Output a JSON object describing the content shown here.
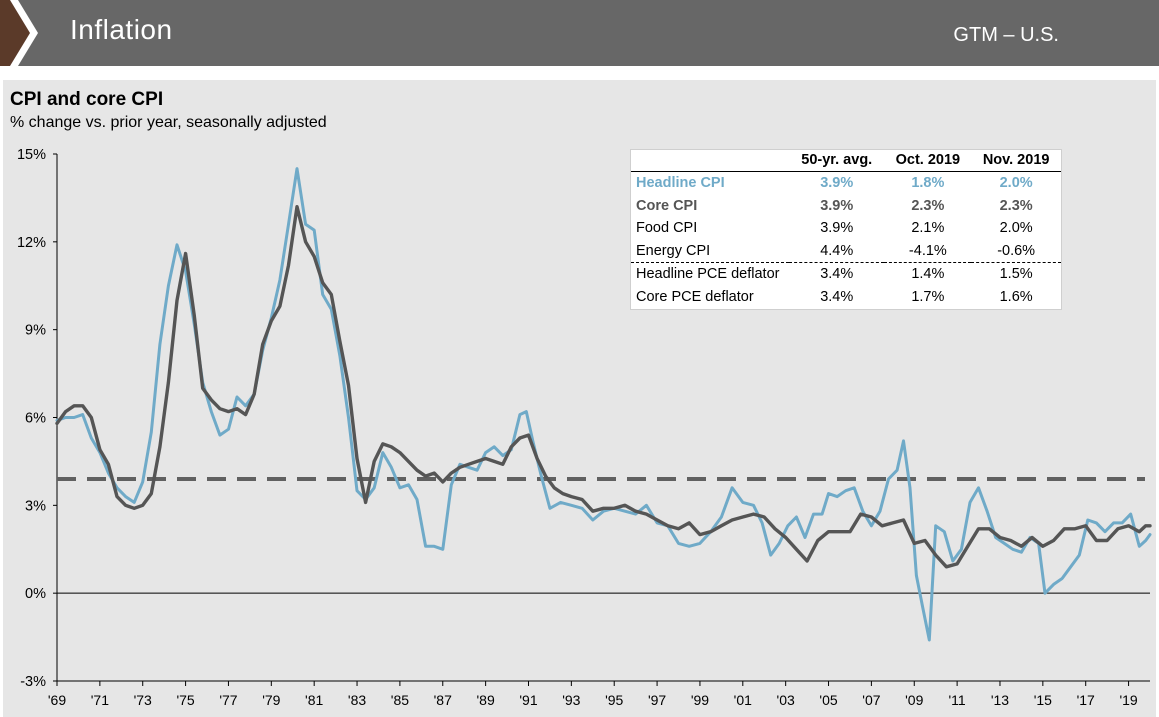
{
  "header": {
    "title": "Inflation",
    "section": "GTM – U.S."
  },
  "colors": {
    "header_bg": "#676767",
    "arrow": "#5b3a29",
    "panel_bg": "#e6e6e6",
    "headline_cpi": "#6faac8",
    "core_cpi": "#555555",
    "avg_line": "#606060"
  },
  "stats_table": {
    "columns": [
      "",
      "50-yr. avg.",
      "Oct. 2019",
      "Nov. 2019"
    ],
    "rows": [
      {
        "label": "Headline CPI",
        "avg": "3.9%",
        "oct": "1.8%",
        "nov": "2.0%"
      },
      {
        "label": "Core CPI",
        "avg": "3.9%",
        "oct": "2.3%",
        "nov": "2.3%"
      },
      {
        "label": "Food CPI",
        "avg": "3.9%",
        "oct": "2.1%",
        "nov": "2.0%"
      },
      {
        "label": "Energy CPI",
        "avg": "4.4%",
        "oct": "-4.1%",
        "nov": "-0.6%"
      },
      {
        "label": "Headline PCE deflator",
        "avg": "3.4%",
        "oct": "1.4%",
        "nov": "1.5%"
      },
      {
        "label": "Core PCE deflator",
        "avg": "3.4%",
        "oct": "1.7%",
        "nov": "1.6%"
      }
    ]
  },
  "chart_data": {
    "type": "line",
    "title": "CPI and core CPI",
    "subtitle": "% change vs. prior year, seasonally adjusted",
    "ylim": [
      -3,
      15
    ],
    "xlim": [
      1969,
      2020
    ],
    "yticks": [
      -3,
      0,
      3,
      6,
      9,
      12,
      15
    ],
    "ytick_labels": [
      "-3%",
      "0%",
      "3%",
      "6%",
      "9%",
      "12%",
      "15%"
    ],
    "xticks": [
      1969,
      1971,
      1973,
      1975,
      1977,
      1979,
      1981,
      1983,
      1985,
      1987,
      1989,
      1991,
      1993,
      1995,
      1997,
      1999,
      2001,
      2003,
      2005,
      2007,
      2009,
      2011,
      2013,
      2015,
      2017,
      2019
    ],
    "xtick_labels": [
      "'69",
      "'71",
      "'73",
      "'75",
      "'77",
      "'79",
      "'81",
      "'83",
      "'85",
      "'87",
      "'89",
      "'91",
      "'93",
      "'95",
      "'97",
      "'99",
      "'01",
      "'03",
      "'05",
      "'07",
      "'09",
      "'11",
      "'13",
      "'15",
      "'17",
      "'19"
    ],
    "reference_line": {
      "value": 3.9,
      "style": "dashed"
    },
    "grid": false,
    "series": [
      {
        "id": "headline",
        "x": [
          1969.0,
          1969.4,
          1969.8,
          1970.2,
          1970.6,
          1971.0,
          1971.4,
          1971.8,
          1972.2,
          1972.6,
          1973.0,
          1973.4,
          1973.8,
          1974.2,
          1974.6,
          1975.0,
          1975.4,
          1975.8,
          1976.2,
          1976.6,
          1977.0,
          1977.4,
          1977.8,
          1978.2,
          1978.6,
          1979.0,
          1979.4,
          1979.8,
          1980.2,
          1980.6,
          1981.0,
          1981.4,
          1981.8,
          1982.2,
          1982.6,
          1983.0,
          1983.4,
          1983.8,
          1984.2,
          1984.6,
          1985.0,
          1985.4,
          1985.8,
          1986.2,
          1986.6,
          1987.0,
          1987.4,
          1987.8,
          1988.2,
          1988.6,
          1989.0,
          1989.4,
          1989.8,
          1990.2,
          1990.6,
          1990.9,
          1991.2,
          1991.6,
          1992.0,
          1992.5,
          1993.0,
          1993.5,
          1994.0,
          1994.5,
          1995.0,
          1995.5,
          1996.0,
          1996.5,
          1997.0,
          1997.5,
          1998.0,
          1998.5,
          1999.0,
          1999.5,
          2000.0,
          2000.5,
          2001.0,
          2001.5,
          2001.9,
          2002.3,
          2002.7,
          2003.1,
          2003.5,
          2003.9,
          2004.3,
          2004.7,
          2005.0,
          2005.4,
          2005.8,
          2006.2,
          2006.6,
          2007.0,
          2007.4,
          2007.8,
          2008.2,
          2008.5,
          2008.8,
          2009.1,
          2009.4,
          2009.7,
          2010.0,
          2010.4,
          2010.8,
          2011.2,
          2011.6,
          2012.0,
          2012.4,
          2012.8,
          2013.2,
          2013.6,
          2014.0,
          2014.4,
          2014.8,
          2015.1,
          2015.5,
          2015.9,
          2016.3,
          2016.7,
          2017.1,
          2017.5,
          2017.9,
          2018.3,
          2018.7,
          2019.1,
          2019.5,
          2019.8,
          2020.0
        ],
        "values": [
          5.9,
          6.0,
          6.0,
          6.1,
          5.3,
          4.8,
          4.1,
          3.6,
          3.3,
          3.1,
          3.8,
          5.5,
          8.5,
          10.5,
          11.9,
          11.0,
          9.2,
          7.2,
          6.2,
          5.4,
          5.6,
          6.7,
          6.4,
          6.8,
          8.3,
          9.4,
          10.7,
          12.6,
          14.5,
          12.6,
          12.4,
          10.2,
          9.7,
          8.1,
          6.0,
          3.5,
          3.2,
          3.6,
          4.8,
          4.3,
          3.6,
          3.7,
          3.2,
          1.6,
          1.6,
          1.5,
          3.7,
          4.4,
          4.3,
          4.2,
          4.8,
          5.0,
          4.7,
          4.9,
          6.1,
          6.2,
          5.2,
          4.0,
          2.9,
          3.1,
          3.0,
          2.9,
          2.5,
          2.8,
          2.9,
          2.8,
          2.7,
          3.0,
          2.4,
          2.3,
          1.7,
          1.6,
          1.7,
          2.1,
          2.6,
          3.6,
          3.1,
          3.0,
          2.4,
          1.3,
          1.7,
          2.3,
          2.6,
          1.9,
          2.7,
          2.7,
          3.4,
          3.3,
          3.5,
          3.6,
          2.8,
          2.3,
          2.8,
          3.9,
          4.2,
          5.2,
          3.6,
          0.6,
          -0.5,
          -1.6,
          2.3,
          2.1,
          1.1,
          1.5,
          3.1,
          3.6,
          2.8,
          1.9,
          1.7,
          1.5,
          1.4,
          1.9,
          1.7,
          0.0,
          0.3,
          0.5,
          0.9,
          1.3,
          2.5,
          2.4,
          2.1,
          2.4,
          2.4,
          2.7,
          1.6,
          1.8,
          2.0
        ]
      },
      {
        "id": "core",
        "x": [
          1969.0,
          1969.4,
          1969.8,
          1970.2,
          1970.6,
          1971.0,
          1971.4,
          1971.8,
          1972.2,
          1972.6,
          1973.0,
          1973.4,
          1973.8,
          1974.2,
          1974.6,
          1975.0,
          1975.4,
          1975.8,
          1976.2,
          1976.6,
          1977.0,
          1977.4,
          1977.8,
          1978.2,
          1978.6,
          1979.0,
          1979.4,
          1979.8,
          1980.2,
          1980.6,
          1981.0,
          1981.4,
          1981.8,
          1982.2,
          1982.6,
          1983.0,
          1983.4,
          1983.8,
          1984.2,
          1984.6,
          1985.0,
          1985.4,
          1985.8,
          1986.2,
          1986.6,
          1987.0,
          1987.4,
          1987.8,
          1988.2,
          1988.6,
          1989.0,
          1989.4,
          1989.8,
          1990.2,
          1990.6,
          1991.0,
          1991.4,
          1991.8,
          1992.2,
          1992.6,
          1993.0,
          1993.5,
          1994.0,
          1994.5,
          1995.0,
          1995.5,
          1996.0,
          1996.5,
          1997.0,
          1997.5,
          1998.0,
          1998.5,
          1999.0,
          1999.5,
          2000.0,
          2000.5,
          2001.0,
          2001.5,
          2002.0,
          2002.5,
          2003.0,
          2003.5,
          2004.0,
          2004.5,
          2005.0,
          2005.5,
          2006.0,
          2006.5,
          2007.0,
          2007.5,
          2008.0,
          2008.5,
          2009.0,
          2009.5,
          2010.0,
          2010.5,
          2011.0,
          2011.5,
          2012.0,
          2012.5,
          2013.0,
          2013.5,
          2014.0,
          2014.5,
          2015.0,
          2015.5,
          2016.0,
          2016.5,
          2017.0,
          2017.5,
          2018.0,
          2018.5,
          2019.0,
          2019.5,
          2019.8,
          2020.0
        ],
        "values": [
          5.8,
          6.2,
          6.4,
          6.4,
          6.0,
          4.9,
          4.4,
          3.3,
          3.0,
          2.9,
          3.0,
          3.4,
          5.0,
          7.2,
          10.0,
          11.6,
          9.5,
          7.0,
          6.6,
          6.3,
          6.2,
          6.3,
          6.1,
          6.8,
          8.5,
          9.3,
          9.8,
          11.2,
          13.2,
          12.0,
          11.5,
          10.6,
          10.2,
          8.6,
          7.1,
          4.6,
          3.1,
          4.5,
          5.1,
          5.0,
          4.8,
          4.5,
          4.2,
          4.0,
          4.1,
          3.8,
          4.1,
          4.3,
          4.4,
          4.5,
          4.6,
          4.5,
          4.4,
          5.0,
          5.3,
          5.4,
          4.6,
          4.0,
          3.6,
          3.4,
          3.3,
          3.2,
          2.8,
          2.9,
          2.9,
          3.0,
          2.8,
          2.7,
          2.5,
          2.3,
          2.2,
          2.4,
          2.0,
          2.1,
          2.3,
          2.5,
          2.6,
          2.7,
          2.6,
          2.2,
          1.9,
          1.5,
          1.1,
          1.8,
          2.1,
          2.1,
          2.1,
          2.7,
          2.6,
          2.3,
          2.4,
          2.5,
          1.7,
          1.8,
          1.3,
          0.9,
          1.0,
          1.6,
          2.2,
          2.2,
          1.9,
          1.8,
          1.6,
          1.9,
          1.6,
          1.8,
          2.2,
          2.2,
          2.3,
          1.8,
          1.8,
          2.2,
          2.3,
          2.1,
          2.3,
          2.3
        ]
      }
    ]
  }
}
